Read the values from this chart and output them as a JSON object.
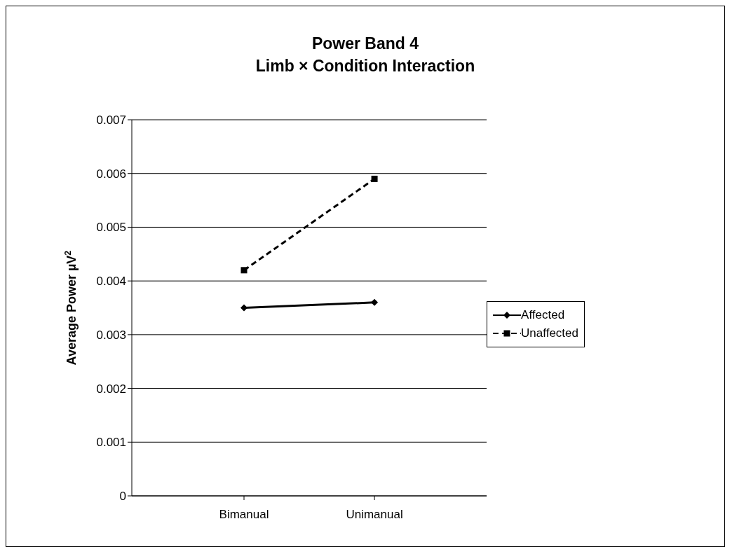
{
  "chart_data": {
    "type": "line",
    "title": "Power Band 4\nLimb × Condition Interaction",
    "ylabel": "Average Power µV$^{2}$",
    "categories": [
      "Bimanual",
      "Unimanual"
    ],
    "series": [
      {
        "name": "Affected",
        "color": "#000000",
        "values": [
          0.0035,
          0.0036
        ],
        "marker": "diamond",
        "line_style": "solid"
      },
      {
        "name": "Unaffected",
        "color": "#000000",
        "values": [
          0.0042,
          0.0059
        ],
        "marker": "square",
        "line_style": "dashed"
      }
    ],
    "ylim": [
      0,
      0.007
    ],
    "yticks": [
      0,
      0.001,
      0.002,
      0.003,
      0.004,
      0.005,
      0.006,
      0.007
    ],
    "grid": "y",
    "legend": "right"
  }
}
